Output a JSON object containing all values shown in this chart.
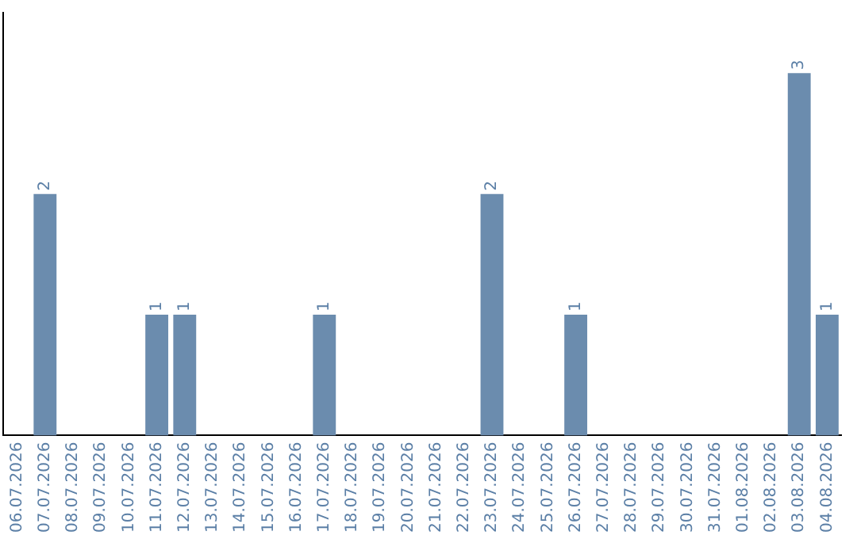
{
  "chart_data": {
    "type": "bar",
    "categories": [
      "06.07.2026",
      "07.07.2026",
      "08.07.2026",
      "09.07.2026",
      "10.07.2026",
      "11.07.2026",
      "12.07.2026",
      "13.07.2026",
      "14.07.2026",
      "15.07.2026",
      "16.07.2026",
      "17.07.2026",
      "18.07.2026",
      "19.07.2026",
      "20.07.2026",
      "21.07.2026",
      "22.07.2026",
      "23.07.2026",
      "24.07.2026",
      "25.07.2026",
      "26.07.2026",
      "27.07.2026",
      "28.07.2026",
      "29.07.2026",
      "30.07.2026",
      "31.07.2026",
      "01.08.2026",
      "02.08.2026",
      "03.08.2026",
      "04.08.2026"
    ],
    "values": [
      0,
      2,
      0,
      0,
      0,
      1,
      1,
      0,
      0,
      0,
      0,
      1,
      0,
      0,
      0,
      0,
      0,
      2,
      0,
      0,
      1,
      0,
      0,
      0,
      0,
      0,
      0,
      0,
      3,
      1
    ],
    "value_labels": [
      null,
      "2",
      null,
      null,
      null,
      "1",
      "1",
      null,
      null,
      null,
      null,
      "1",
      null,
      null,
      null,
      null,
      null,
      "2",
      null,
      null,
      "1",
      null,
      null,
      null,
      null,
      null,
      null,
      null,
      "3",
      "1"
    ],
    "color": "#6b8cae",
    "grid": false,
    "legend": false,
    "tick_labels": "x"
  }
}
